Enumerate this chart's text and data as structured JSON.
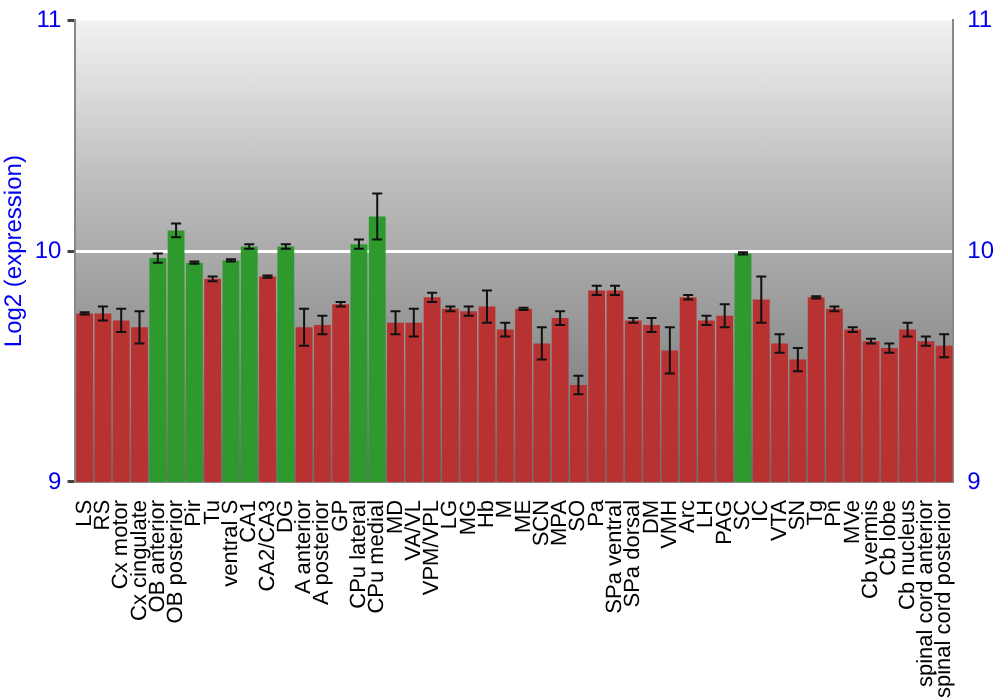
{
  "chart_data": {
    "type": "bar",
    "ylabel": "Log2 (expression)",
    "categories": [
      "LS",
      "RS",
      "Cx motor",
      "Cx cingulate",
      "OB anterior",
      "OB posterior",
      "Pir",
      "Tu",
      "ventral S",
      "CA1",
      "CA2/CA3",
      "DG",
      "A anterior",
      "A posterior",
      "GP",
      "CPu lateral",
      "CPu medial",
      "MD",
      "VA/VL",
      "VPM/VPL",
      "LG",
      "MG",
      "Hb",
      "M",
      "ME",
      "SCN",
      "MPA",
      "SO",
      "Pa",
      "SPa ventral",
      "SPa dorsal",
      "DM",
      "VMH",
      "Arc",
      "LH",
      "PAG",
      "SC",
      "IC",
      "VTA",
      "SN",
      "Tg",
      "Pn",
      "MVe",
      "Cb vermis",
      "Cb lobe",
      "Cb nucleus",
      "spinal cord anterior",
      "spinal cord posterior"
    ],
    "values": [
      9.73,
      9.73,
      9.7,
      9.67,
      9.97,
      10.09,
      9.95,
      9.88,
      9.96,
      10.02,
      9.89,
      10.02,
      9.67,
      9.68,
      9.77,
      10.03,
      10.15,
      9.69,
      9.69,
      9.8,
      9.75,
      9.74,
      9.76,
      9.66,
      9.75,
      9.6,
      9.71,
      9.42,
      9.83,
      9.83,
      9.7,
      9.68,
      9.57,
      9.8,
      9.7,
      9.72,
      9.99,
      9.79,
      9.6,
      9.53,
      9.8,
      9.75,
      9.66,
      9.61,
      9.58,
      9.66,
      9.61,
      9.59
    ],
    "errors": [
      0.005,
      0.03,
      0.05,
      0.07,
      0.02,
      0.03,
      0.005,
      0.01,
      0.005,
      0.01,
      0.005,
      0.01,
      0.08,
      0.04,
      0.01,
      0.02,
      0.1,
      0.05,
      0.06,
      0.02,
      0.01,
      0.02,
      0.07,
      0.03,
      0.005,
      0.07,
      0.03,
      0.04,
      0.02,
      0.02,
      0.01,
      0.03,
      0.1,
      0.01,
      0.02,
      0.05,
      0.005,
      0.1,
      0.04,
      0.05,
      0.005,
      0.01,
      0.01,
      0.01,
      0.02,
      0.03,
      0.02,
      0.05
    ],
    "colors": [
      "#b83232",
      "#b83232",
      "#b83232",
      "#b83232",
      "#2e9a2e",
      "#2e9a2e",
      "#2e9a2e",
      "#b83232",
      "#2e9a2e",
      "#2e9a2e",
      "#b83232",
      "#2e9a2e",
      "#b83232",
      "#b83232",
      "#b83232",
      "#2e9a2e",
      "#2e9a2e",
      "#b83232",
      "#b83232",
      "#b83232",
      "#b83232",
      "#b83232",
      "#b83232",
      "#b83232",
      "#b83232",
      "#b83232",
      "#b83232",
      "#b83232",
      "#b83232",
      "#b83232",
      "#b83232",
      "#b83232",
      "#b83232",
      "#b83232",
      "#b83232",
      "#b83232",
      "#2e9a2e",
      "#b83232",
      "#b83232",
      "#b83232",
      "#b83232",
      "#b83232",
      "#b83232",
      "#b83232",
      "#b83232",
      "#b83232",
      "#b83232",
      "#b83232"
    ],
    "ylim": [
      9,
      11
    ],
    "yticks": [
      9,
      10,
      11
    ],
    "y2lim": [
      9,
      11
    ],
    "y2ticks": [
      9,
      10,
      11
    ],
    "grid": "y",
    "legend": false
  }
}
